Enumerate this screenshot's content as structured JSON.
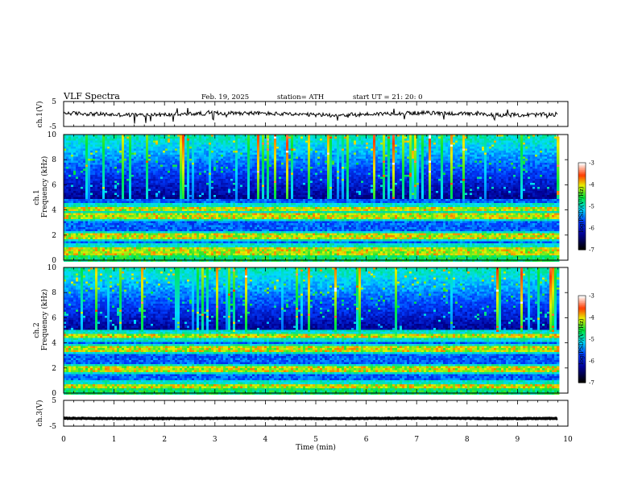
{
  "header": {
    "title": "VLF  Spectra",
    "date": "Feb. 19, 2025",
    "station": "station= ATH",
    "start_ut": "start  UT  =   21: 20: 0"
  },
  "chart_data": [
    {
      "type": "line",
      "name": "ch1-waveform",
      "ylabel": "ch.1(V)",
      "ylim": [
        -5,
        5
      ],
      "ytick_labels": [
        "5",
        "-5"
      ],
      "xlim": [
        0,
        10
      ],
      "approx_level_V": 0
    },
    {
      "type": "heatmap",
      "name": "ch1-spectrogram",
      "ylabel_line1": "ch.1",
      "ylabel_line2": "Frequency  (kHz)",
      "ylim": [
        0,
        10
      ],
      "ytick_labels": [
        "0",
        "2",
        "4",
        "6",
        "8",
        "10"
      ],
      "xlim": [
        0,
        9.8
      ],
      "colorbar": {
        "label": "log(PSD)(V²/Hz)",
        "range": [
          -7,
          -3
        ],
        "tick_labels": [
          "-3",
          "-4",
          "-5",
          "-6",
          "-7"
        ]
      },
      "features": {
        "strong_bands_kHz": [
          0.6,
          1.0,
          2.0,
          3.6,
          4.2
        ],
        "sferic_band_kHz": [
          5,
          10
        ]
      }
    },
    {
      "type": "heatmap",
      "name": "ch2-spectrogram",
      "ylabel_line1": "ch.2",
      "ylabel_line2": "Frequency  (kHz)",
      "ylim": [
        0,
        10
      ],
      "ytick_labels": [
        "0",
        "2",
        "4",
        "6",
        "8",
        "10"
      ],
      "xlim": [
        0,
        9.8
      ],
      "colorbar": {
        "label": "log(PSD)(V²/Hz)",
        "range": [
          -7,
          -3
        ],
        "tick_labels": [
          "-3",
          "-4",
          "-5",
          "-6",
          "-7"
        ]
      },
      "features": {
        "strong_bands_kHz": [
          0.6,
          2.0,
          3.6,
          4.6
        ],
        "sferic_band_kHz": [
          5,
          10
        ]
      }
    },
    {
      "type": "line",
      "name": "ch3-waveform",
      "ylabel": "ch.3(V)",
      "ylim": [
        -5,
        5
      ],
      "ytick_labels": [
        "5",
        "-5"
      ],
      "xlim": [
        0,
        10
      ],
      "approx_level_V": -2
    }
  ],
  "xaxis": {
    "label": "Time  (min)",
    "range": [
      0,
      10
    ],
    "tick_labels": [
      "0",
      "1",
      "2",
      "3",
      "4",
      "5",
      "6",
      "7",
      "8",
      "9",
      "10"
    ]
  },
  "colors": {
    "axis": "#000000",
    "trace": "#000000"
  }
}
